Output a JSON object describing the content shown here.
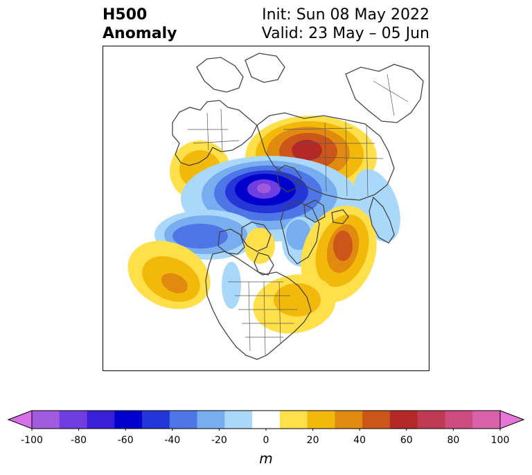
{
  "title": {
    "left_line1": "H500",
    "left_line2": "Anomaly",
    "right_line1": "Init: Sun 08 May 2022",
    "right_line2": "Valid: 23 May – 05 Jun"
  },
  "colorbar": {
    "unit": "m",
    "ticks": [
      "-100",
      "-80",
      "-60",
      "-40",
      "-20",
      "0",
      "20",
      "40",
      "60",
      "80",
      "100"
    ],
    "colors": [
      "#d86ee8",
      "#a05ade",
      "#6e3ee0",
      "#3a1fd6",
      "#0000cc",
      "#2436d8",
      "#4f76e6",
      "#78aef0",
      "#aad8fa",
      "#ffffff",
      "#ffe04a",
      "#f2b80a",
      "#e08a10",
      "#cc561a",
      "#b42828",
      "#c03a54",
      "#cc4c80",
      "#da62aa",
      "#e874d8"
    ]
  },
  "anomaly_colors": {
    "neg_light": "#aad8fa",
    "neg_mid": "#78aef0",
    "neg_strong": "#4f76e6",
    "neg_deep": "#2436d8",
    "neg_core": "#0000cc",
    "neg_peak": "#6e3ee0",
    "neg_max": "#a05ade",
    "pos_light": "#ffe04a",
    "pos_mid": "#f2b80a",
    "pos_strong": "#e08a10",
    "pos_deep": "#cc561a",
    "pos_core": "#b42828"
  }
}
